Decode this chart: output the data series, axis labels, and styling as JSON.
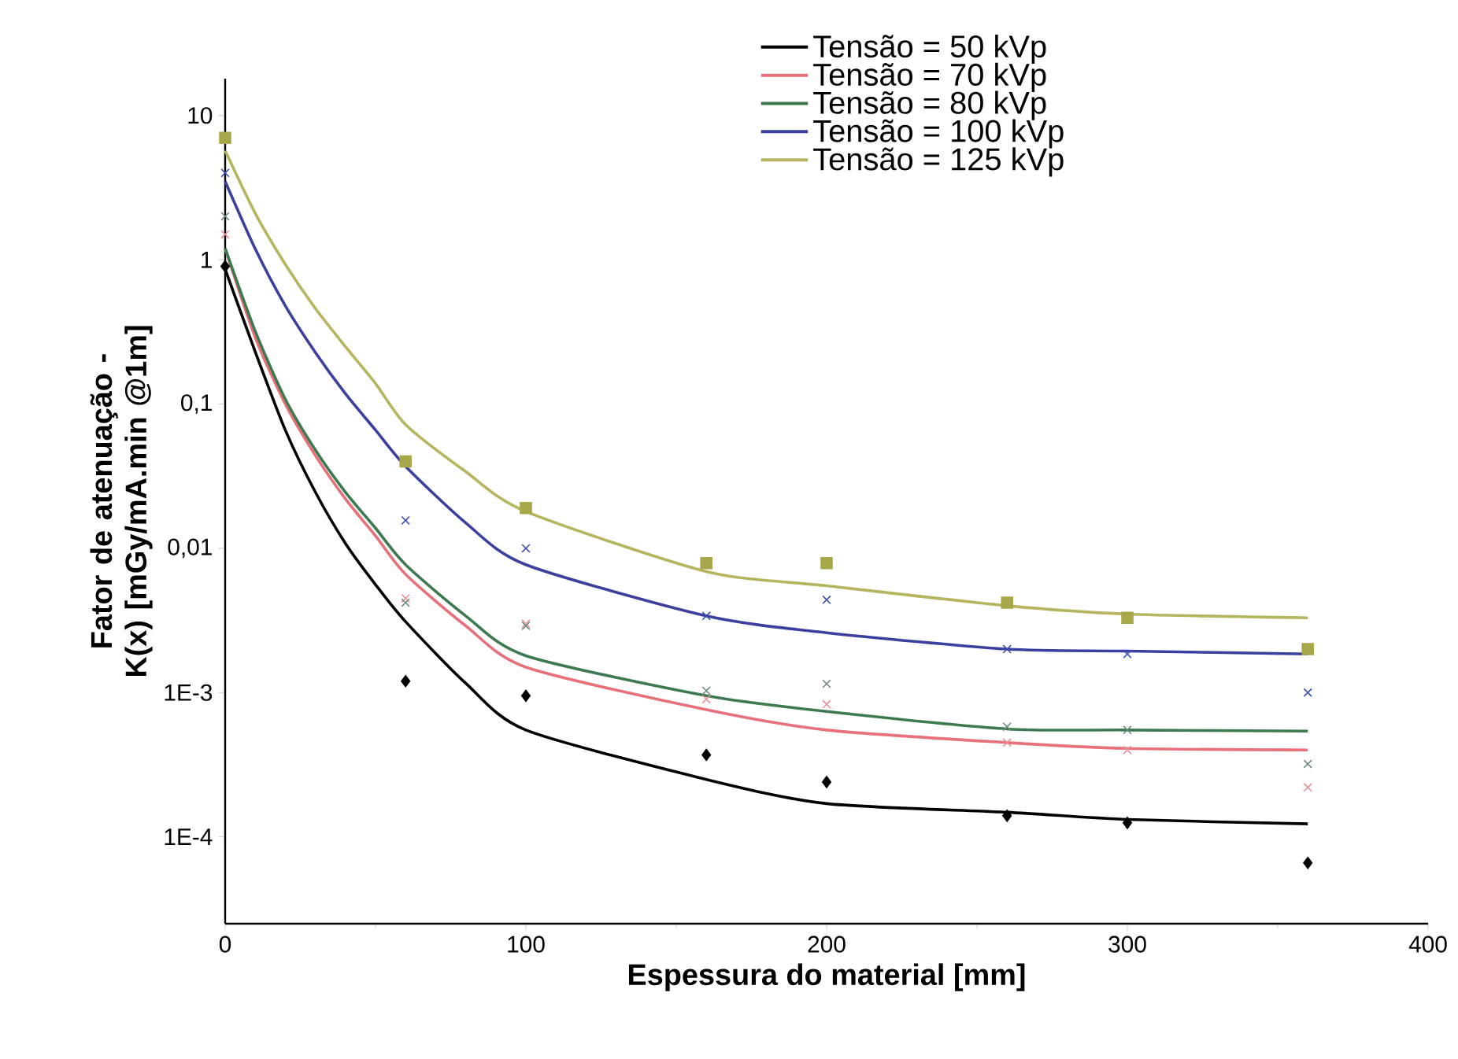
{
  "chart_data": {
    "type": "scatter",
    "xlabel": "Espessura do material [mm]",
    "ylabel": "Fator de atenuação - K(x) [mGy/mA.min @1m]",
    "log": "y",
    "legend": "top right",
    "xlim": [
      0,
      400
    ],
    "xticks": [
      0,
      100,
      200,
      300,
      400
    ],
    "ylim": [
      2.5e-05,
      18
    ],
    "yticks": [
      {
        "value": 10,
        "label": "10"
      },
      {
        "value": 1,
        "label": "1"
      },
      {
        "value": 0.1,
        "label": "0,1"
      },
      {
        "value": 0.01,
        "label": "0,01"
      },
      {
        "value": 0.001,
        "label": "1E-3"
      },
      {
        "value": 0.0001,
        "label": "1E-4"
      }
    ],
    "series": [
      {
        "type": "line",
        "name": "Tensão = 50 kVp",
        "color": "#000000",
        "x": [
          0,
          10,
          20,
          30,
          40,
          50,
          60,
          80,
          100,
          160,
          200,
          260,
          300,
          360
        ],
        "values": [
          0.86,
          0.23,
          0.066,
          0.0245,
          0.0108,
          0.0056,
          0.0031,
          0.00116,
          0.00055,
          0.00025,
          0.00017,
          0.000148,
          0.000132,
          0.000123
        ]
      },
      {
        "type": "line",
        "name": "Tensão = 70 kVp",
        "color": "#e8707a",
        "x": [
          0,
          10,
          20,
          30,
          40,
          50,
          60,
          80,
          100,
          160,
          200,
          260,
          300,
          360
        ],
        "values": [
          1.2,
          0.29,
          0.1,
          0.044,
          0.022,
          0.0122,
          0.0066,
          0.0029,
          0.0015,
          0.00076,
          0.00055,
          0.00045,
          0.00041,
          0.0004
        ]
      },
      {
        "type": "line",
        "name": "Tensão = 80 kVp",
        "color": "#3d7a4f",
        "x": [
          0,
          10,
          20,
          30,
          40,
          50,
          60,
          80,
          100,
          160,
          200,
          260,
          300,
          360
        ],
        "values": [
          1.2,
          0.32,
          0.108,
          0.048,
          0.0245,
          0.0138,
          0.0077,
          0.0034,
          0.0018,
          0.00095,
          0.00074,
          0.00056,
          0.00055,
          0.00054
        ]
      },
      {
        "type": "line",
        "name": "Tensão = 100 kVp",
        "color": "#3b3f9e",
        "x": [
          0,
          10,
          20,
          30,
          40,
          50,
          60,
          80,
          100,
          160,
          200,
          260,
          300,
          360
        ],
        "values": [
          3.5,
          1.19,
          0.48,
          0.228,
          0.118,
          0.066,
          0.037,
          0.015,
          0.0077,
          0.0034,
          0.0026,
          0.002,
          0.00194,
          0.00185
        ]
      },
      {
        "type": "line",
        "name": "Tensão = 125 kVp",
        "color": "#b5b560",
        "x": [
          0,
          10,
          20,
          30,
          40,
          50,
          60,
          80,
          100,
          160,
          200,
          260,
          300,
          360
        ],
        "values": [
          5.7,
          2.1,
          0.93,
          0.46,
          0.25,
          0.139,
          0.072,
          0.034,
          0.018,
          0.0069,
          0.0055,
          0.004,
          0.0035,
          0.0033
        ]
      },
      {
        "marker": "diamond",
        "color": "#000000",
        "x": [
          0,
          60,
          100,
          160,
          200,
          260,
          300,
          360
        ],
        "values": [
          0.9,
          0.0012,
          0.00095,
          0.00037,
          0.00024,
          0.00014,
          0.000125,
          6.6e-05
        ]
      },
      {
        "marker": "cross",
        "color": "#e8909a",
        "x": [
          0,
          60,
          100,
          160,
          200,
          260,
          300,
          360
        ],
        "values": [
          1.5,
          0.0045,
          0.003,
          0.0009,
          0.00083,
          0.00045,
          0.0004,
          0.00022
        ]
      },
      {
        "marker": "cross",
        "color": "#6f8a80",
        "x": [
          0,
          60,
          100,
          160,
          200,
          260,
          300,
          360
        ],
        "values": [
          2,
          0.0042,
          0.0029,
          0.00103,
          0.00115,
          0.00058,
          0.00055,
          0.00032
        ]
      },
      {
        "marker": "cross",
        "color": "#3b4fb0",
        "x": [
          0,
          60,
          100,
          160,
          200,
          260,
          300,
          360
        ],
        "values": [
          4,
          0.0156,
          0.01,
          0.0034,
          0.0044,
          0.002,
          0.00185,
          0.001
        ]
      },
      {
        "marker": "square",
        "color": "#a8a84a",
        "x": [
          0,
          60,
          100,
          160,
          200,
          260,
          300,
          360
        ],
        "values": [
          7,
          0.04,
          0.019,
          0.0079,
          0.0079,
          0.0042,
          0.0033,
          0.002
        ]
      }
    ]
  }
}
